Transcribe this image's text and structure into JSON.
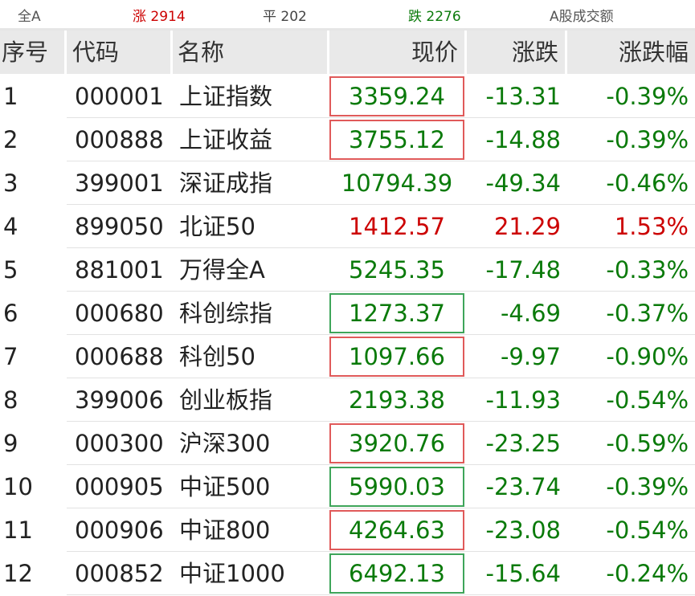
{
  "summary": {
    "all": "全A",
    "up_label": "涨 2914",
    "flat_label": "平 202",
    "down_label": "跌 2276",
    "turnover": "A股成交额"
  },
  "colors": {
    "up": "#cc0000",
    "down": "#0a7a0a",
    "box_red": "#e05a5a",
    "box_green": "#3ea55a"
  },
  "headers": {
    "index": "序号",
    "code": "代码",
    "name": "名称",
    "price": "现价",
    "change": "涨跌",
    "pct": "涨跌幅"
  },
  "rows": [
    {
      "index": "1",
      "code": "000001",
      "name": "上证指数",
      "price": "3359.24",
      "change": "-13.31",
      "pct": "-0.39%",
      "dir": "down",
      "box": "red"
    },
    {
      "index": "2",
      "code": "000888",
      "name": "上证收益",
      "price": "3755.12",
      "change": "-14.88",
      "pct": "-0.39%",
      "dir": "down",
      "box": "red"
    },
    {
      "index": "3",
      "code": "399001",
      "name": "深证成指",
      "price": "10794.39",
      "change": "-49.34",
      "pct": "-0.46%",
      "dir": "down",
      "box": ""
    },
    {
      "index": "4",
      "code": "899050",
      "name": "北证50",
      "price": "1412.57",
      "change": "21.29",
      "pct": "1.53%",
      "dir": "up",
      "box": ""
    },
    {
      "index": "5",
      "code": "881001",
      "name": "万得全A",
      "price": "5245.35",
      "change": "-17.48",
      "pct": "-0.33%",
      "dir": "down",
      "box": ""
    },
    {
      "index": "6",
      "code": "000680",
      "name": "科创综指",
      "price": "1273.37",
      "change": "-4.69",
      "pct": "-0.37%",
      "dir": "down",
      "box": "green"
    },
    {
      "index": "7",
      "code": "000688",
      "name": "科创50",
      "price": "1097.66",
      "change": "-9.97",
      "pct": "-0.90%",
      "dir": "down",
      "box": "red"
    },
    {
      "index": "8",
      "code": "399006",
      "name": "创业板指",
      "price": "2193.38",
      "change": "-11.93",
      "pct": "-0.54%",
      "dir": "down",
      "box": ""
    },
    {
      "index": "9",
      "code": "000300",
      "name": "沪深300",
      "price": "3920.76",
      "change": "-23.25",
      "pct": "-0.59%",
      "dir": "down",
      "box": "red"
    },
    {
      "index": "10",
      "code": "000905",
      "name": "中证500",
      "price": "5990.03",
      "change": "-23.74",
      "pct": "-0.39%",
      "dir": "down",
      "box": "green"
    },
    {
      "index": "11",
      "code": "000906",
      "name": "中证800",
      "price": "4264.63",
      "change": "-23.08",
      "pct": "-0.54%",
      "dir": "down",
      "box": "red"
    },
    {
      "index": "12",
      "code": "000852",
      "name": "中证1000",
      "price": "6492.13",
      "change": "-15.64",
      "pct": "-0.24%",
      "dir": "down",
      "box": "green"
    }
  ]
}
